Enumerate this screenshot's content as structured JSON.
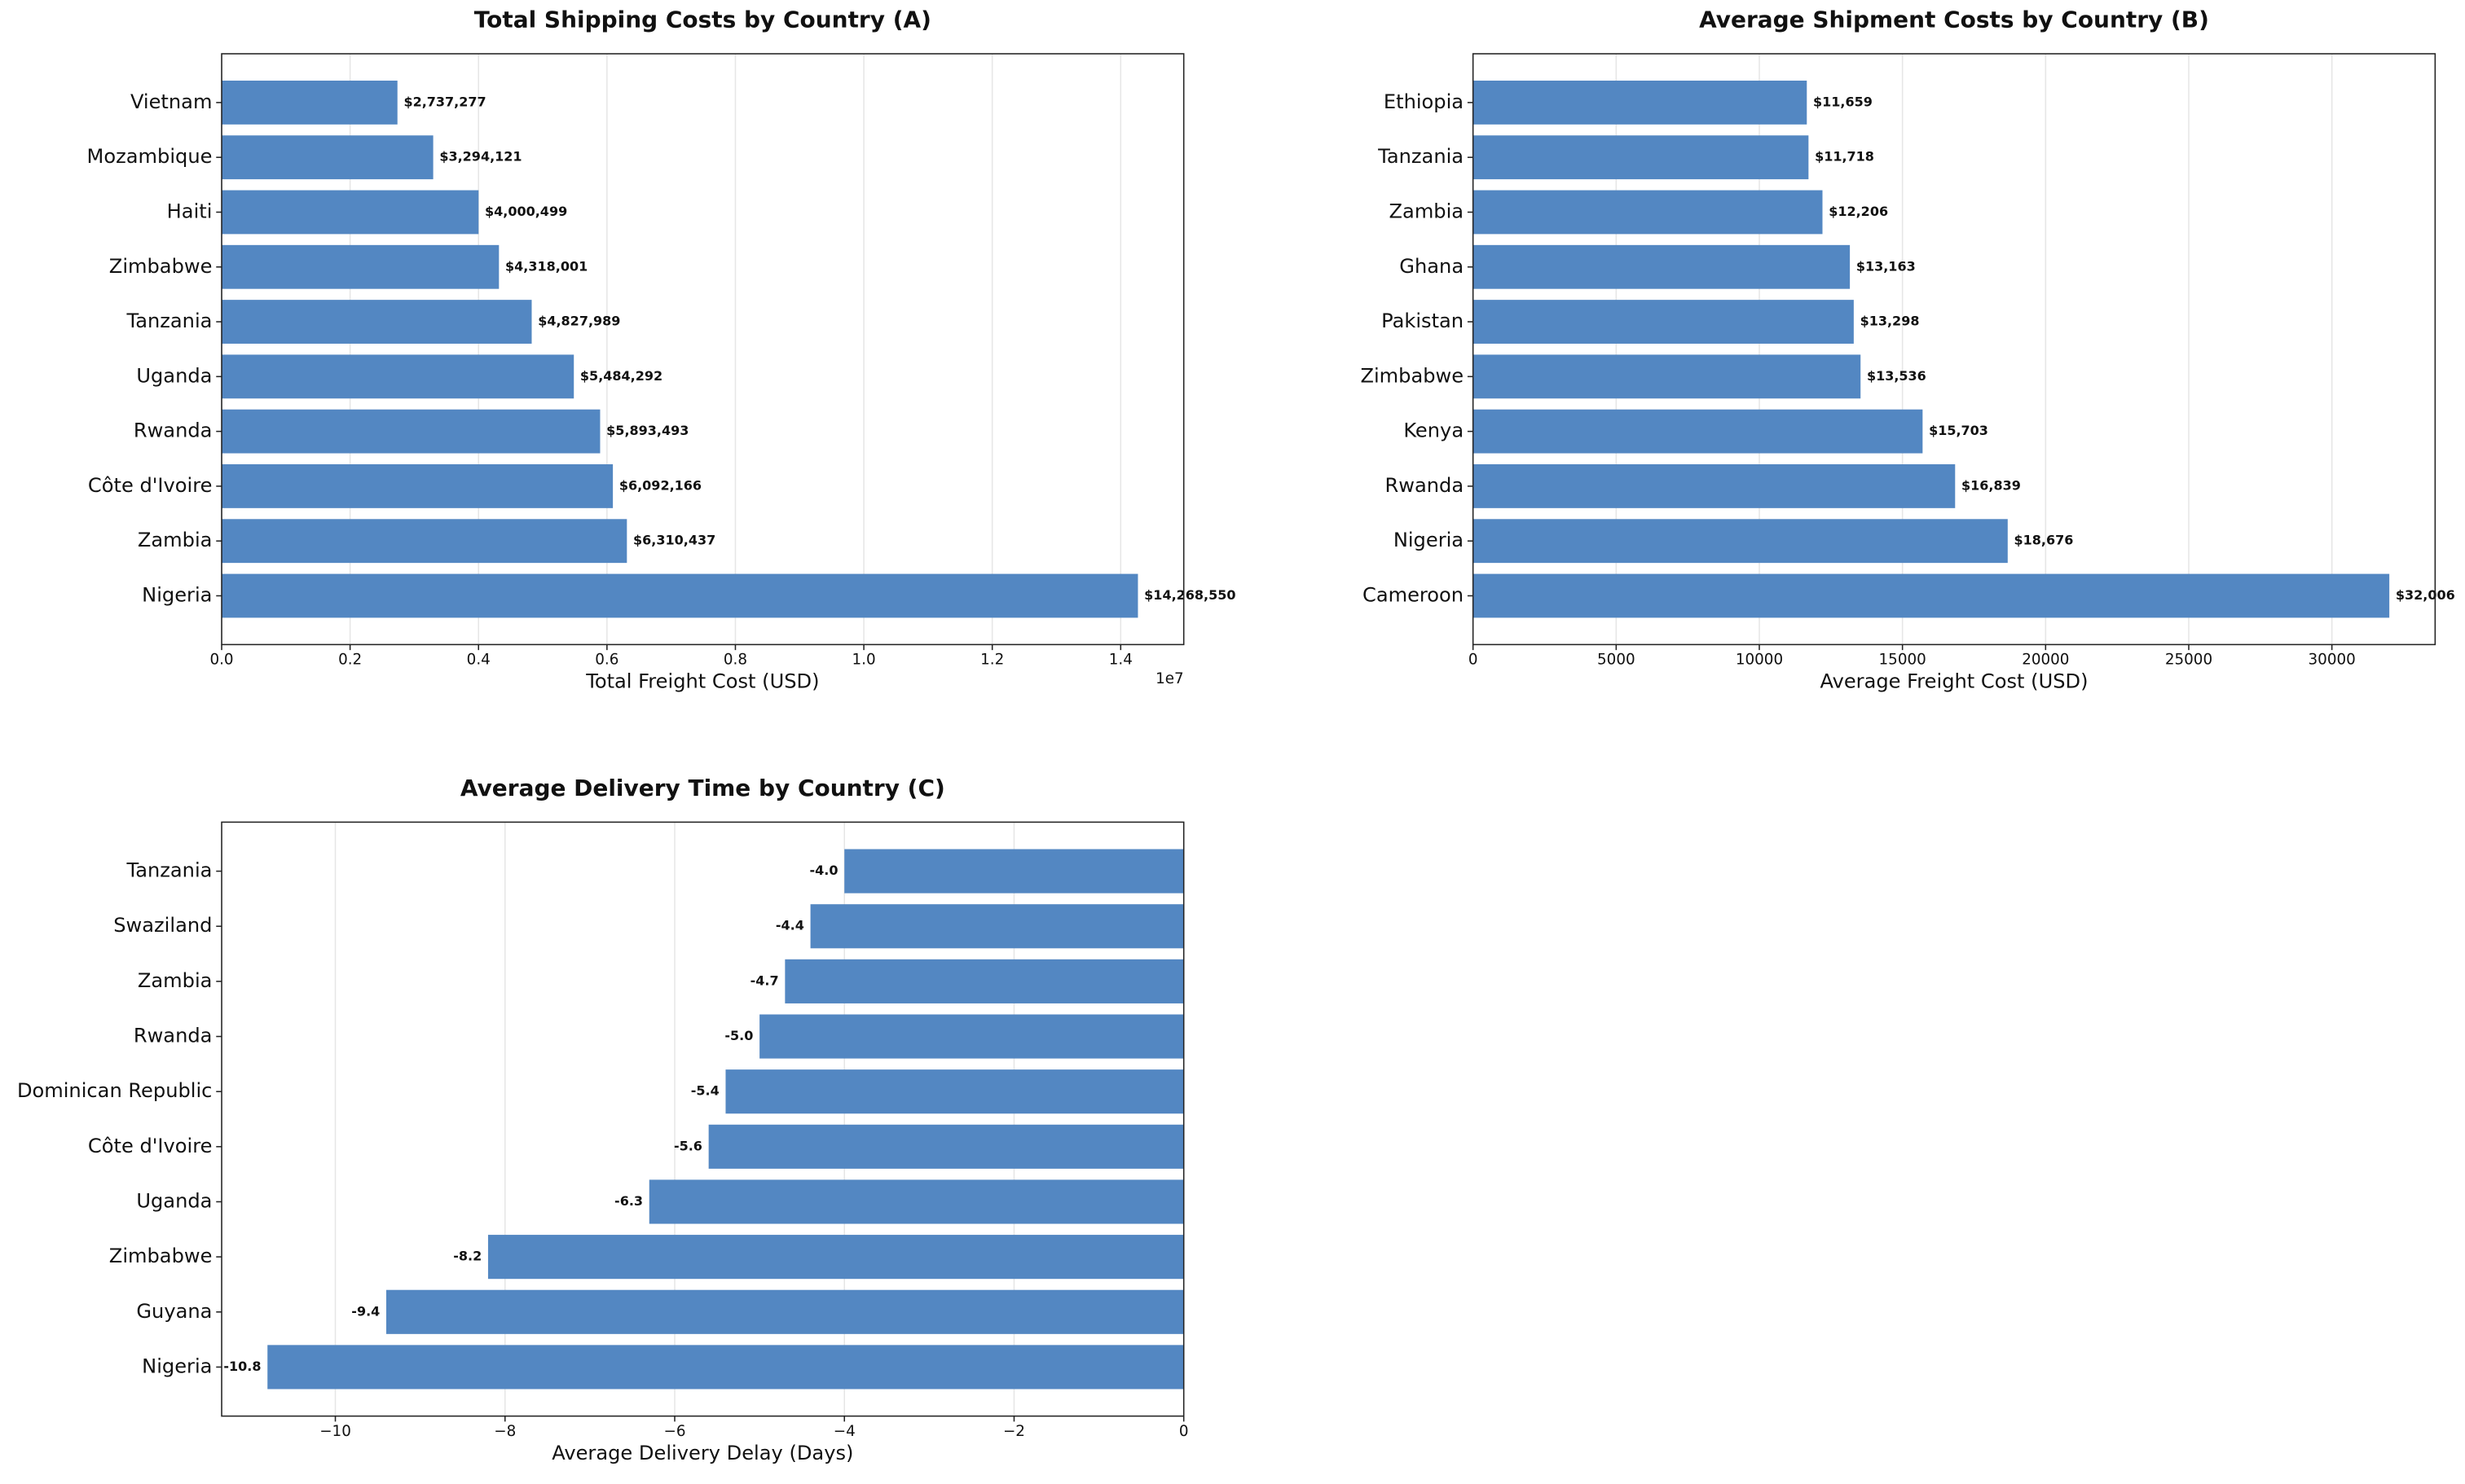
{
  "chart_data": [
    {
      "type": "barh",
      "title": "Total Shipping Costs by Country (A)",
      "x_label": "Total Freight Cost (USD)",
      "x_offset_label": "1e7",
      "categories": [
        "Vietnam",
        "Mozambique",
        "Haiti",
        "Zimbabwe",
        "Tanzania",
        "Uganda",
        "Rwanda",
        "Côte d'Ivoire",
        "Zambia",
        "Nigeria"
      ],
      "values": [
        2737277,
        3294121,
        4000499,
        4318001,
        4827989,
        5484292,
        5893493,
        6092166,
        6310437,
        14268550
      ],
      "value_labels": [
        "$2,737,277",
        "$3,294,121",
        "$4,000,499",
        "$4,318,001",
        "$4,827,989",
        "$5,484,292",
        "$5,893,493",
        "$6,092,166",
        "$6,310,437",
        "$14,268,550"
      ],
      "color": "#5387c2",
      "xlim": [
        0,
        14982077
      ],
      "xticks": [
        {
          "value": 0,
          "label": "0.0"
        },
        {
          "value": 2000000,
          "label": "0.2"
        },
        {
          "value": 4000000,
          "label": "0.4"
        },
        {
          "value": 6000000,
          "label": "0.6"
        },
        {
          "value": 8000000,
          "label": "0.8"
        },
        {
          "value": 10000000,
          "label": "1.0"
        },
        {
          "value": 12000000,
          "label": "1.2"
        },
        {
          "value": 14000000,
          "label": "1.4"
        }
      ],
      "grid": true
    },
    {
      "type": "barh",
      "title": "Average Shipment Costs by Country (B)",
      "x_label": "Average Freight Cost (USD)",
      "categories": [
        "Ethiopia",
        "Tanzania",
        "Zambia",
        "Ghana",
        "Pakistan",
        "Zimbabwe",
        "Kenya",
        "Rwanda",
        "Nigeria",
        "Cameroon"
      ],
      "values": [
        11659,
        11718,
        12206,
        13163,
        13298,
        13536,
        15703,
        16839,
        18676,
        32006
      ],
      "value_labels": [
        "$11,659",
        "$11,718",
        "$12,206",
        "$13,163",
        "$13,298",
        "$13,536",
        "$15,703",
        "$16,839",
        "$18,676",
        "$32,006"
      ],
      "color": "#5387c2",
      "xlim": [
        0,
        33606
      ],
      "xticks": [
        0,
        5000,
        10000,
        15000,
        20000,
        25000,
        30000
      ],
      "grid": true
    },
    {
      "type": "barh",
      "title": "Average Delivery Time by Country (C)",
      "x_label": "Average Delivery Delay (Days)",
      "categories": [
        "Tanzania",
        "Swaziland",
        "Zambia",
        "Rwanda",
        "Dominican Republic",
        "Côte d'Ivoire",
        "Uganda",
        "Zimbabwe",
        "Guyana",
        "Nigeria"
      ],
      "values": [
        -4.0,
        -4.4,
        -4.7,
        -5.0,
        -5.4,
        -5.6,
        -6.3,
        -8.2,
        -9.4,
        -10.8
      ],
      "value_labels": [
        "-4.0",
        "-4.4",
        "-4.7",
        "-5.0",
        "-5.4",
        "-5.6",
        "-6.3",
        "-8.2",
        "-9.4",
        "-10.8"
      ],
      "color": "#5387c2",
      "xlim": [
        -11.34,
        0
      ],
      "xticks": [
        {
          "value": -10,
          "label": "−10"
        },
        {
          "value": -8,
          "label": "−8"
        },
        {
          "value": -6,
          "label": "−6"
        },
        {
          "value": -4,
          "label": "−4"
        },
        {
          "value": -2,
          "label": "−2"
        },
        0
      ],
      "grid": true
    }
  ]
}
